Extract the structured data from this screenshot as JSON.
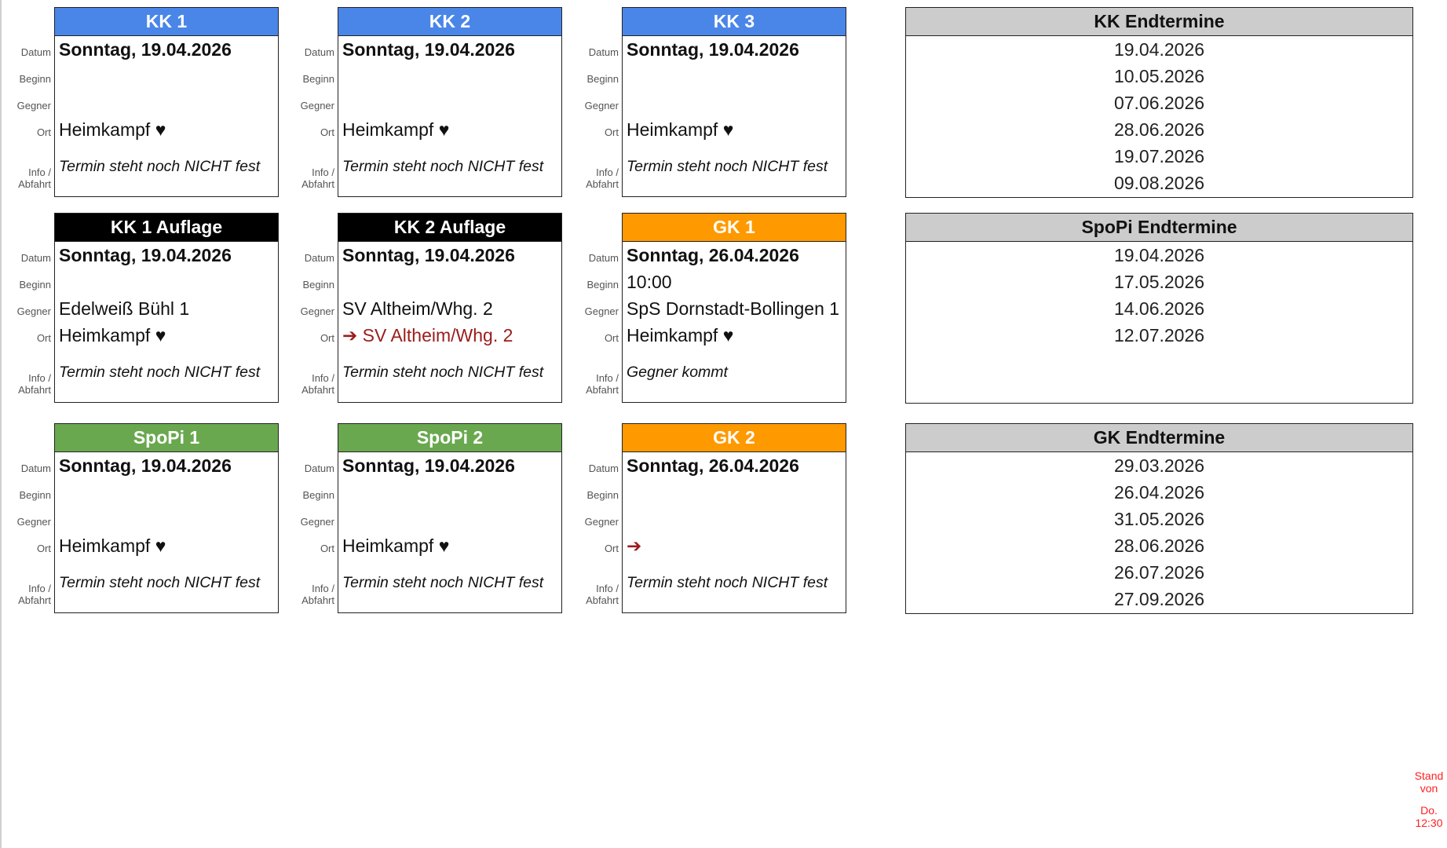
{
  "row_labels": {
    "datum": "Datum",
    "beginn": "Beginn",
    "gegner": "Gegner",
    "ort": "Ort",
    "info": "Info /",
    "info2": "Abfahrt"
  },
  "colors": {
    "kk": "#4a86e8",
    "auflage": "#000000",
    "spopi": "#6aa84f",
    "gk": "#ff9900",
    "endtermine": "#cccccc",
    "away": "#9b1c1c",
    "stand": "#ff2020"
  },
  "cards": [
    {
      "title": "KK 1",
      "color": "kk",
      "datum": "Sonntag, 19.04.2026",
      "beginn": "",
      "gegner": "",
      "ort": "Heimkampf ♥",
      "ort_away": false,
      "info": "Termin steht noch NICHT fest"
    },
    {
      "title": "KK 2",
      "color": "kk",
      "datum": "Sonntag, 19.04.2026",
      "beginn": "",
      "gegner": "",
      "ort": "Heimkampf ♥",
      "ort_away": false,
      "info": "Termin steht noch NICHT fest"
    },
    {
      "title": "KK 3",
      "color": "kk",
      "datum": "Sonntag, 19.04.2026",
      "beginn": "",
      "gegner": "",
      "ort": "Heimkampf ♥",
      "ort_away": false,
      "info": "Termin steht noch NICHT fest"
    },
    {
      "title": "KK 1 Auflage",
      "color": "auflage",
      "datum": "Sonntag, 19.04.2026",
      "beginn": "",
      "gegner": "Edelweiß Bühl 1",
      "ort": "Heimkampf ♥",
      "ort_away": false,
      "info": "Termin steht noch NICHT fest"
    },
    {
      "title": "KK 2 Auflage",
      "color": "auflage",
      "datum": "Sonntag, 19.04.2026",
      "beginn": "",
      "gegner": "SV Altheim/Whg. 2",
      "ort": "➔ SV Altheim/Whg. 2",
      "ort_away": true,
      "info": "Termin steht noch NICHT fest"
    },
    {
      "title": "GK 1",
      "color": "gk",
      "datum": "Sonntag, 26.04.2026",
      "beginn": "10:00",
      "gegner": "SpS Dornstadt-Bollingen 1",
      "ort": "Heimkampf ♥",
      "ort_away": false,
      "info": "Gegner kommt"
    },
    {
      "title": "SpoPi 1",
      "color": "spopi",
      "datum": "Sonntag, 19.04.2026",
      "beginn": "",
      "gegner": "",
      "ort": "Heimkampf ♥",
      "ort_away": false,
      "info": "Termin steht noch NICHT fest"
    },
    {
      "title": "SpoPi 2",
      "color": "spopi",
      "datum": "Sonntag, 19.04.2026",
      "beginn": "",
      "gegner": "",
      "ort": "Heimkampf ♥",
      "ort_away": false,
      "info": "Termin steht noch NICHT fest"
    },
    {
      "title": "GK 2",
      "color": "gk",
      "datum": "Sonntag, 26.04.2026",
      "beginn": "",
      "gegner": "",
      "ort": "➔",
      "ort_away": true,
      "info": "Termin steht noch NICHT fest"
    }
  ],
  "endtermine": [
    {
      "title": "KK Endtermine",
      "dates": [
        "19.04.2026",
        "10.05.2026",
        "07.06.2026",
        "28.06.2026",
        "19.07.2026",
        "09.08.2026"
      ]
    },
    {
      "title": "SpoPi Endtermine",
      "dates": [
        "19.04.2026",
        "17.05.2026",
        "14.06.2026",
        "12.07.2026"
      ]
    },
    {
      "title": "GK Endtermine",
      "dates": [
        "29.03.2026",
        "26.04.2026",
        "31.05.2026",
        "28.06.2026",
        "26.07.2026",
        "27.09.2026"
      ]
    }
  ],
  "stand": {
    "line1": "Stand",
    "line2": "von",
    "line3": "Do.",
    "line4": "12:30"
  }
}
